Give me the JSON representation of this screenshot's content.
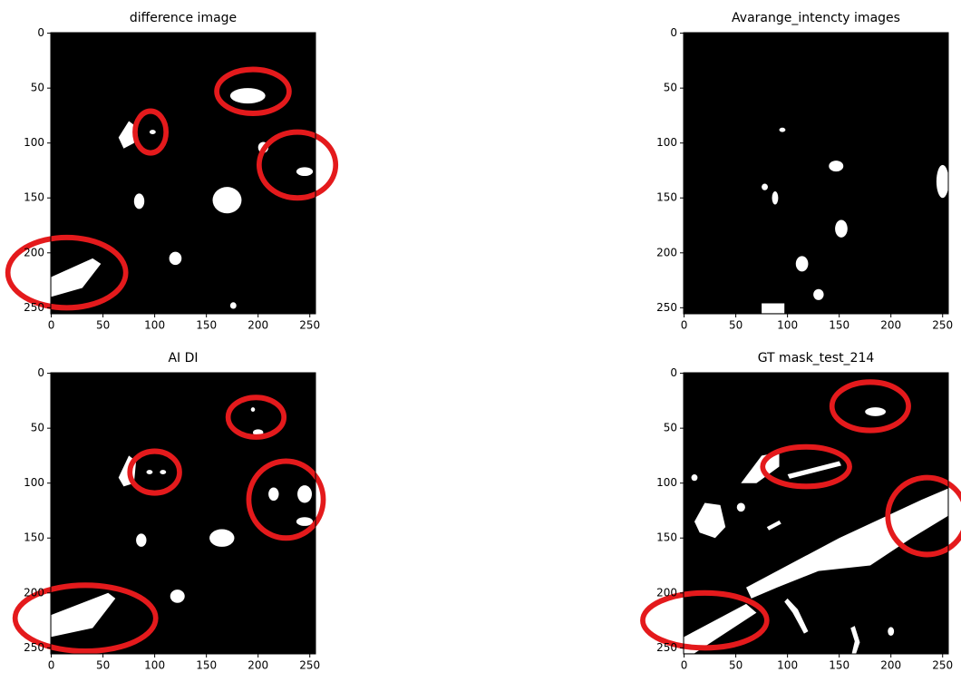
{
  "chart_data": [
    {
      "type": "image",
      "title": "difference image",
      "xlim": [
        -0.5,
        255.5
      ],
      "ylim": [
        255.5,
        -0.5
      ],
      "xticks": [
        0,
        50,
        100,
        150,
        200,
        250
      ],
      "yticks": [
        0,
        50,
        100,
        150,
        200,
        250
      ]
    },
    {
      "type": "image",
      "title": "Avarange_intencty images",
      "xlim": [
        -0.5,
        255.5
      ],
      "ylim": [
        255.5,
        -0.5
      ],
      "xticks": [
        0,
        50,
        100,
        150,
        200,
        250
      ],
      "yticks": [
        0,
        50,
        100,
        150,
        200,
        250
      ]
    },
    {
      "type": "image",
      "title": "AI DI",
      "xlim": [
        -0.5,
        255.5
      ],
      "ylim": [
        255.5,
        -0.5
      ],
      "xticks": [
        0,
        50,
        100,
        150,
        200,
        250
      ],
      "yticks": [
        0,
        50,
        100,
        150,
        200,
        250
      ]
    },
    {
      "type": "image",
      "title": "GT mask_test_214",
      "xlim": [
        -0.5,
        255.5
      ],
      "ylim": [
        255.5,
        -0.5
      ],
      "xticks": [
        0,
        50,
        100,
        150,
        200,
        250
      ],
      "yticks": [
        0,
        50,
        100,
        150,
        200,
        250
      ]
    }
  ]
}
